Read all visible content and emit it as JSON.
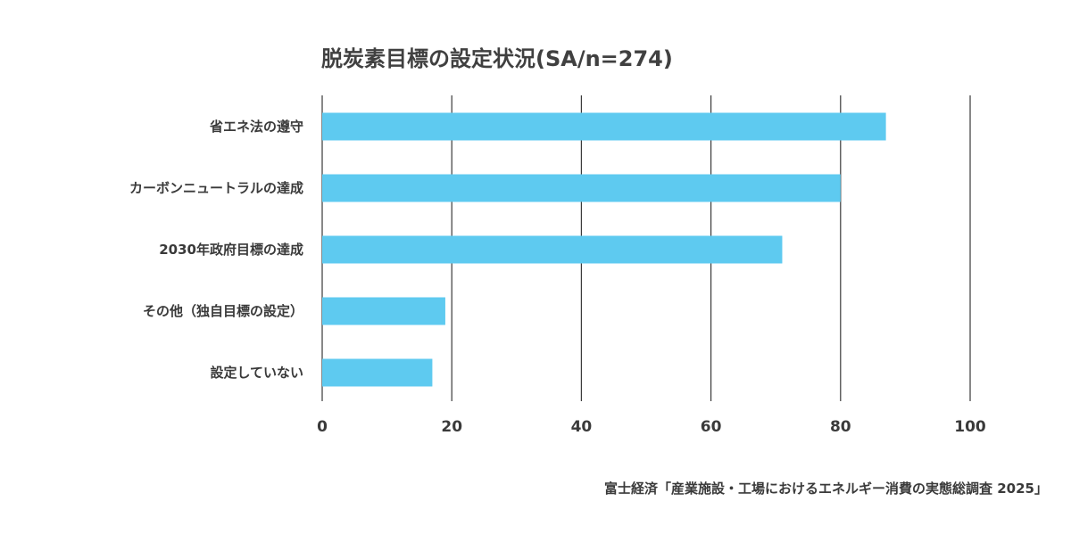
{
  "chart_data": {
    "type": "bar",
    "orientation": "horizontal",
    "title": "脱炭素目標の設定状況(SA/n=274)",
    "categories": [
      "省エネ法の遵守",
      "カーボンニュートラルの達成",
      "2030年政府目標の達成",
      "その他（独自目標の設定）",
      "設定していない"
    ],
    "values": [
      87,
      80,
      71,
      19,
      17
    ],
    "xlim": [
      0,
      100
    ],
    "xticks": [
      "0",
      "20",
      "40",
      "60",
      "80",
      "100"
    ],
    "xtick_values": [
      0,
      20,
      40,
      60,
      80,
      100
    ],
    "grid": true,
    "legend": "none",
    "bar_color": "#5ecaf0",
    "grid_color": "#3a3a3a"
  },
  "source": "富士経済「産業施設・工場におけるエネルギー消費の実態総調査 2025」"
}
